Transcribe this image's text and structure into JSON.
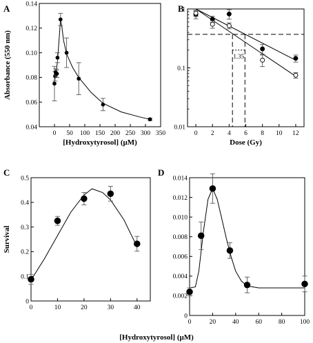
{
  "chart_data": [
    {
      "panel": "A",
      "type": "scatter",
      "xlabel": "[Hydroxytyrosol] (μM)",
      "ylabel": "Absorbance (550 nm)",
      "xlim": [
        -50,
        350
      ],
      "ylim": [
        0.04,
        0.14
      ],
      "xticks": [
        0,
        50,
        100,
        150,
        200,
        250,
        300,
        350
      ],
      "yticks": [
        0.04,
        0.06,
        0.08,
        0.1,
        0.12,
        0.14
      ],
      "ytick_labels": [
        "0.04",
        "0.06",
        "0.08",
        "0.10",
        "0.12",
        "0.14"
      ],
      "grid": false,
      "points": [
        {
          "x": 0,
          "y": 0.075,
          "err": 0.014
        },
        {
          "x": 2,
          "y": 0.081,
          "err": 0.004
        },
        {
          "x": 4,
          "y": 0.084,
          "err": 0.003
        },
        {
          "x": 8,
          "y": 0.083,
          "err": 0.003
        },
        {
          "x": 10,
          "y": 0.096,
          "err": 0.004
        },
        {
          "x": 20,
          "y": 0.127,
          "err": 0.005
        },
        {
          "x": 40,
          "y": 0.1,
          "err": 0.012
        },
        {
          "x": 80,
          "y": 0.079,
          "err": 0.013
        },
        {
          "x": 160,
          "y": 0.058,
          "err": 0.005
        },
        {
          "x": 315,
          "y": 0.046,
          "err": 0.001
        }
      ],
      "fit": [
        [
          0,
          0.078
        ],
        [
          5,
          0.083
        ],
        [
          10,
          0.093
        ],
        [
          15,
          0.11
        ],
        [
          20,
          0.127
        ],
        [
          25,
          0.12
        ],
        [
          30,
          0.11
        ],
        [
          40,
          0.099
        ],
        [
          60,
          0.088
        ],
        [
          80,
          0.08
        ],
        [
          120,
          0.068
        ],
        [
          160,
          0.059
        ],
        [
          220,
          0.052
        ],
        [
          280,
          0.048
        ],
        [
          315,
          0.046
        ]
      ]
    },
    {
      "panel": "B",
      "type": "scatter",
      "xlabel": "Dose (Gy)",
      "ylabel": "",
      "yscale": "log",
      "xlim": [
        -1,
        13
      ],
      "ylim": [
        0.01,
        1
      ],
      "xticks": [
        0,
        2,
        4,
        6,
        8,
        10,
        12
      ],
      "yticks": [
        0.01,
        0.1,
        1
      ],
      "ytick_labels": [
        "0.01",
        "0.1",
        "1"
      ],
      "grid": false,
      "series": [
        {
          "marker": "filled",
          "points": [
            {
              "x": 0,
              "y": 0.8,
              "err": 0.12
            },
            {
              "x": 2,
              "y": 0.67,
              "err": 0.08
            },
            {
              "x": 4,
              "y": 0.82,
              "err": 0.15
            },
            {
              "x": 8,
              "y": 0.21,
              "err": 0.04
            },
            {
              "x": 12,
              "y": 0.145,
              "err": 0.02
            }
          ],
          "fit": [
            [
              0,
              1.0
            ],
            [
              12,
              0.135
            ]
          ]
        },
        {
          "marker": "open",
          "points": [
            {
              "x": 0,
              "y": 0.85,
              "err": 0.1
            },
            {
              "x": 2,
              "y": 0.55,
              "err": 0.08
            },
            {
              "x": 4,
              "y": 0.52,
              "err": 0.06
            },
            {
              "x": 8,
              "y": 0.135,
              "err": 0.03
            },
            {
              "x": 12,
              "y": 0.075,
              "err": 0.008
            }
          ],
          "fit": [
            [
              0,
              1.0
            ],
            [
              12,
              0.072
            ]
          ]
        }
      ],
      "reference": {
        "y": 0.37,
        "x1": 4.4,
        "x2": 5.9
      },
      "annotation": "1.35"
    },
    {
      "panel": "C",
      "type": "scatter",
      "xlabel": "",
      "ylabel": "Survival",
      "xlim": [
        0,
        45
      ],
      "ylim": [
        0,
        0.5
      ],
      "xticks": [
        0,
        10,
        20,
        30,
        40
      ],
      "yticks": [
        0,
        0.1,
        0.2,
        0.3,
        0.4,
        0.5
      ],
      "ytick_labels": [
        "0",
        "0.1",
        "0.2",
        "0.3",
        "0.4",
        "0.5"
      ],
      "grid": false,
      "points": [
        {
          "x": 0,
          "y": 0.088,
          "err": 0.02
        },
        {
          "x": 10,
          "y": 0.325,
          "err": 0.018
        },
        {
          "x": 20,
          "y": 0.415,
          "err": 0.025
        },
        {
          "x": 30,
          "y": 0.435,
          "err": 0.03
        },
        {
          "x": 40,
          "y": 0.232,
          "err": 0.03
        }
      ],
      "fit": [
        [
          0,
          0.085
        ],
        [
          5,
          0.17
        ],
        [
          10,
          0.265
        ],
        [
          15,
          0.36
        ],
        [
          20,
          0.43
        ],
        [
          23,
          0.455
        ],
        [
          27,
          0.44
        ],
        [
          30,
          0.41
        ],
        [
          35,
          0.33
        ],
        [
          40,
          0.22
        ]
      ]
    },
    {
      "panel": "D",
      "type": "scatter",
      "xlabel": "",
      "ylabel": "",
      "xlim": [
        0,
        100
      ],
      "ylim": [
        0,
        0.014
      ],
      "xticks": [
        0,
        20,
        40,
        60,
        80,
        100
      ],
      "yticks": [
        0,
        0.002,
        0.004,
        0.006,
        0.008,
        0.01,
        0.012,
        0.014
      ],
      "ytick_labels": [
        "0",
        "0.002",
        "0.004",
        "0.006",
        "0.008",
        "0.010",
        "0.012",
        "0.014"
      ],
      "grid": false,
      "points": [
        {
          "x": 0,
          "y": 0.0024,
          "err": 0.0004
        },
        {
          "x": 10,
          "y": 0.0081,
          "err": 0.0014
        },
        {
          "x": 20,
          "y": 0.0129,
          "err": 0.0015
        },
        {
          "x": 35,
          "y": 0.0066,
          "err": 0.0008
        },
        {
          "x": 50,
          "y": 0.0031,
          "err": 0.0008
        },
        {
          "x": 100,
          "y": 0.0032,
          "err": 0.0008
        }
      ],
      "fit": [
        [
          0,
          0.0028
        ],
        [
          5,
          0.0029
        ],
        [
          8,
          0.0045
        ],
        [
          12,
          0.0085
        ],
        [
          16,
          0.0118
        ],
        [
          20,
          0.0129
        ],
        [
          24,
          0.0118
        ],
        [
          28,
          0.0098
        ],
        [
          32,
          0.0078
        ],
        [
          36,
          0.006
        ],
        [
          40,
          0.0045
        ],
        [
          45,
          0.0035
        ],
        [
          50,
          0.003
        ],
        [
          60,
          0.0028
        ],
        [
          100,
          0.0028
        ]
      ]
    }
  ],
  "shared_xlabel": "[Hydroxytyrosol] (μM)"
}
